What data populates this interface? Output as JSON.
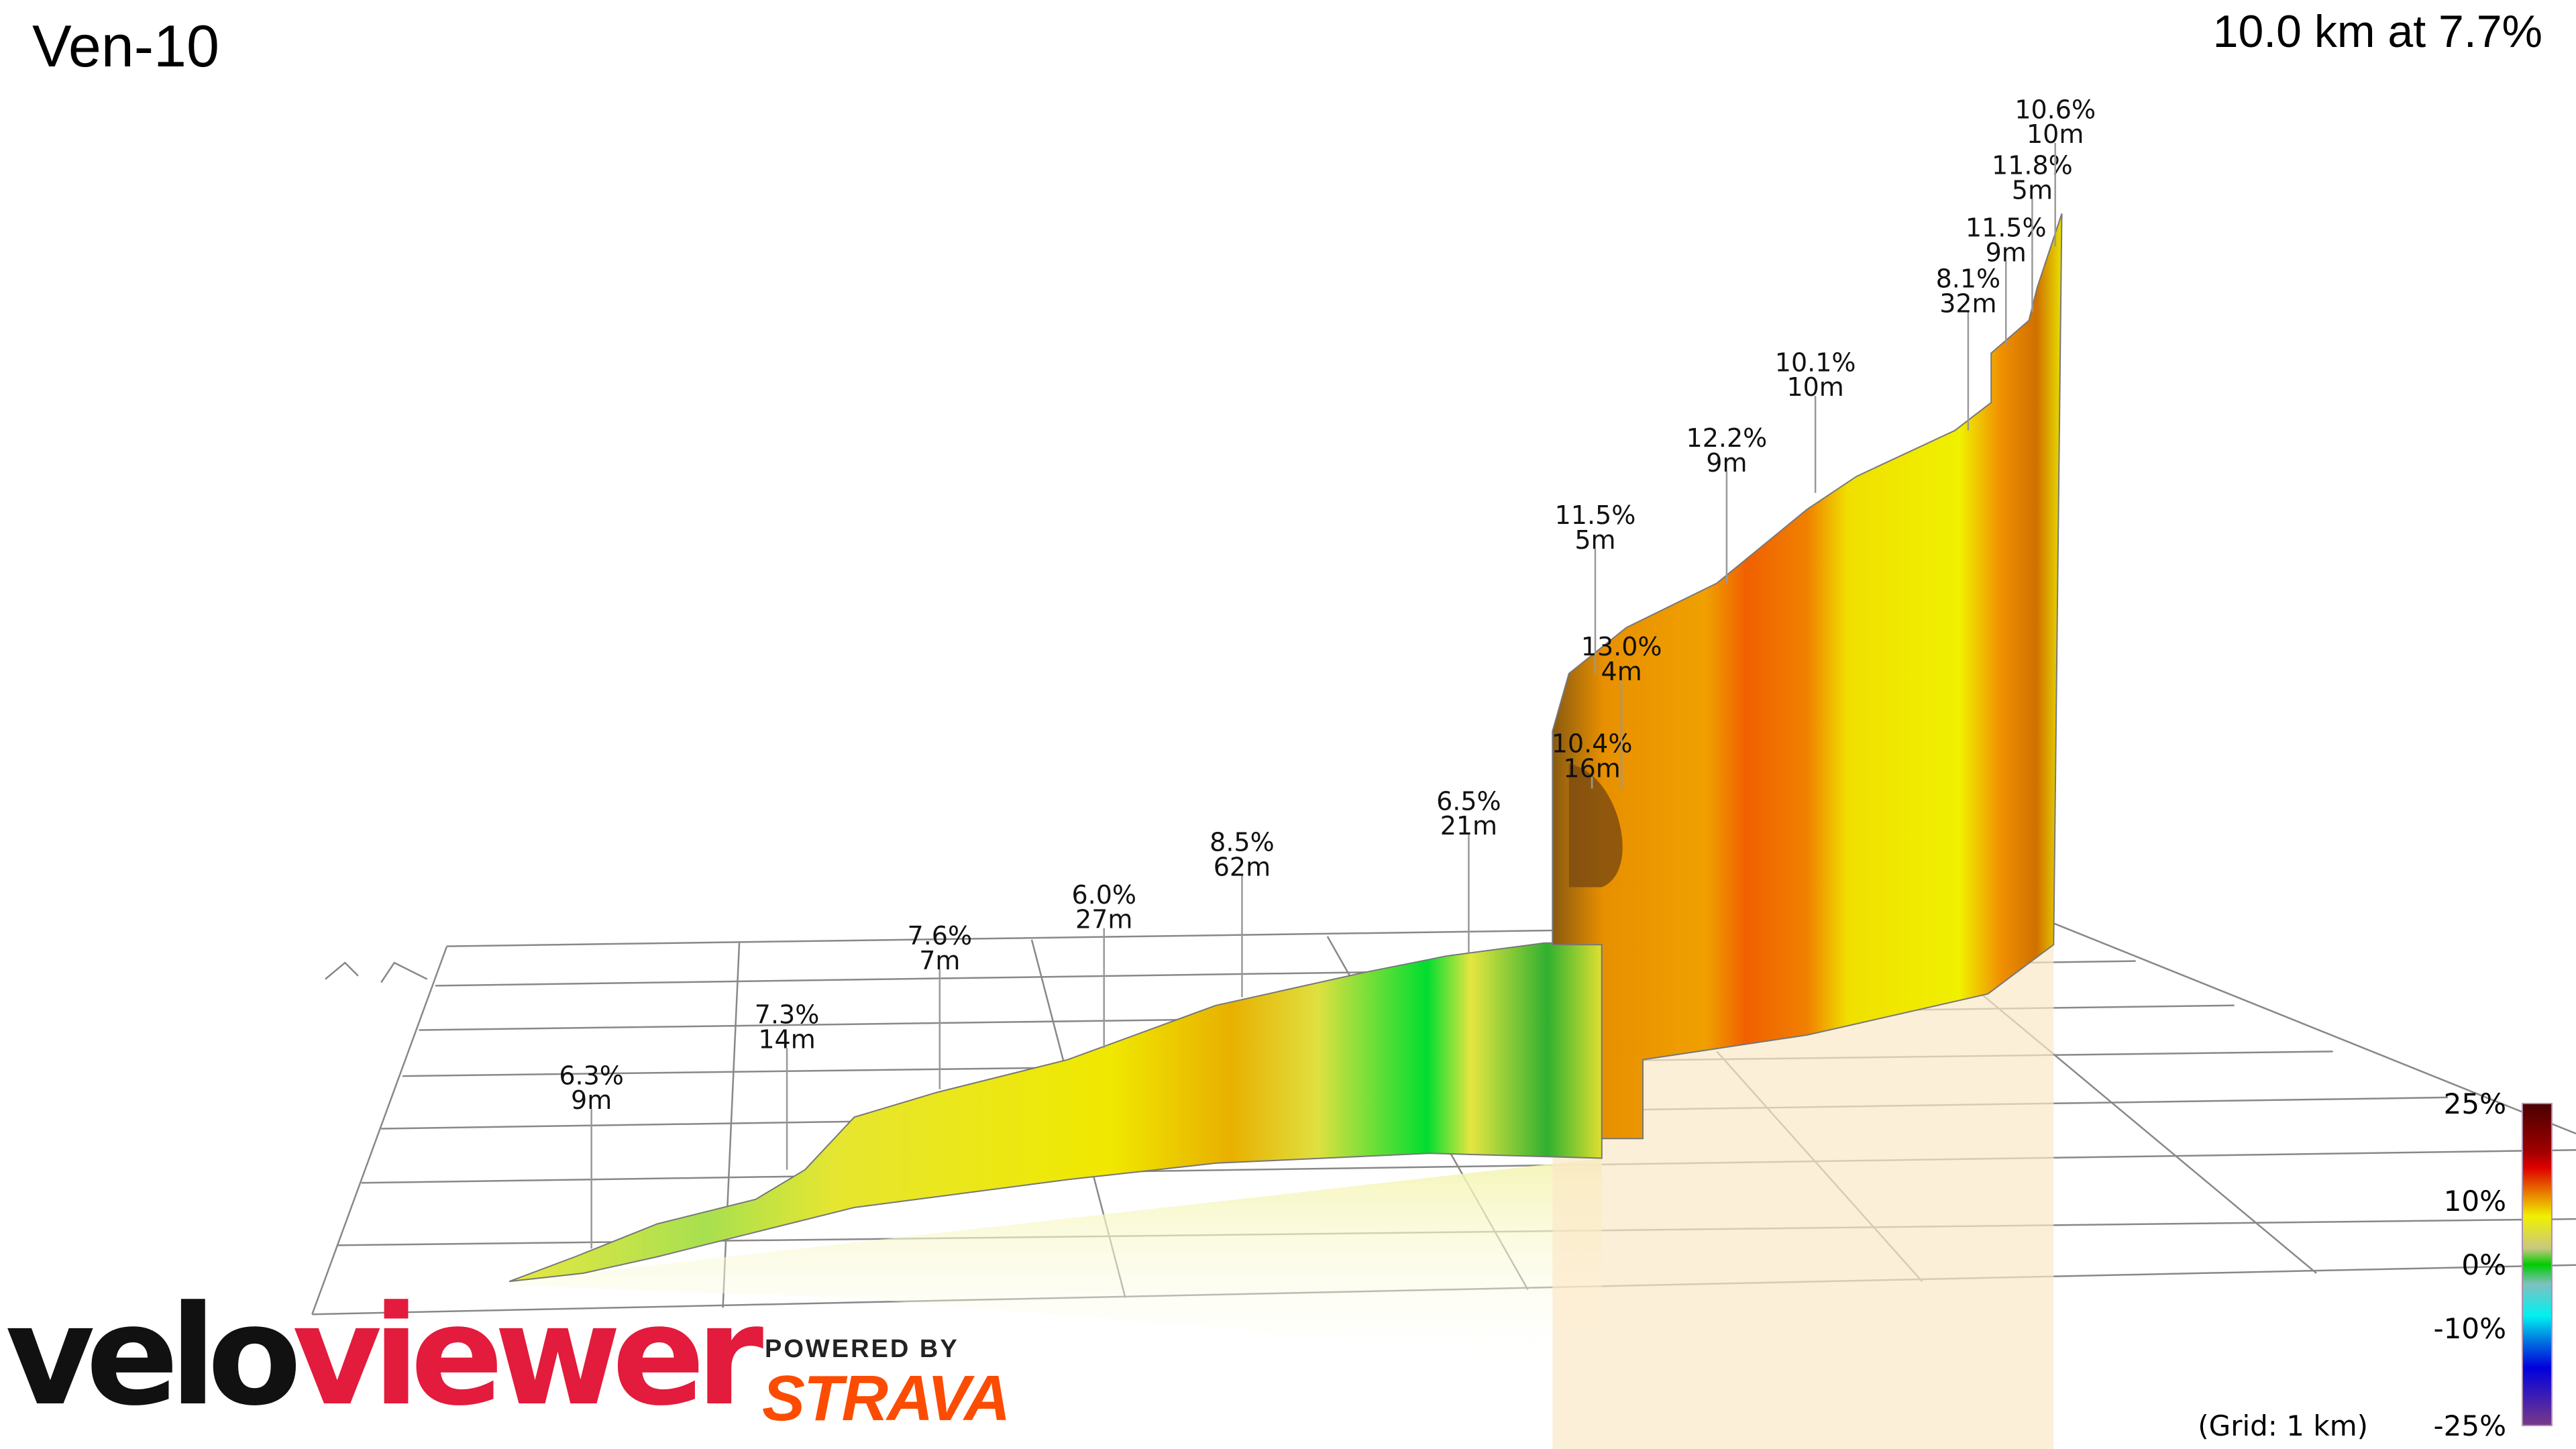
{
  "header": {
    "title": "Ven-10",
    "summary": "10.0 km at 7.7%"
  },
  "chart_data": {
    "type": "area",
    "title": "Ven-10",
    "subtitle": "10.0 km at 7.7%",
    "segments": [
      {
        "grade": "6.3%",
        "length": "9m"
      },
      {
        "grade": "7.3%",
        "length": "14m"
      },
      {
        "grade": "7.6%",
        "length": "7m"
      },
      {
        "grade": "6.0%",
        "length": "27m"
      },
      {
        "grade": "8.5%",
        "length": "62m"
      },
      {
        "grade": "6.5%",
        "length": "21m"
      },
      {
        "grade": "10.4%",
        "length": "16m"
      },
      {
        "grade": "13.0%",
        "length": "4m"
      },
      {
        "grade": "11.5%",
        "length": "5m"
      },
      {
        "grade": "12.2%",
        "length": "9m"
      },
      {
        "grade": "10.1%",
        "length": "10m"
      },
      {
        "grade": "8.1%",
        "length": "32m"
      },
      {
        "grade": "11.5%",
        "length": "9m"
      },
      {
        "grade": "11.8%",
        "length": "5m"
      },
      {
        "grade": "10.6%",
        "length": "10m"
      }
    ],
    "colorscale": {
      "ticks": [
        "25%",
        "10%",
        "0%",
        "-10%",
        "-25%"
      ],
      "grid_note": "(Grid: 1 km)",
      "colors": [
        "#4a0000",
        "#a00000",
        "#e00000",
        "#e88000",
        "#f0f000",
        "#c8c880",
        "#00cc00",
        "#80c0c0",
        "#00f0f0",
        "#0070e0",
        "#0000dd",
        "#7a3a8a"
      ]
    },
    "grid": true
  },
  "branding": {
    "logo_a": "velo",
    "logo_b": "viewer",
    "powered_by": "POWERED BY",
    "strava": "STRAVA",
    "strava_color": "#fc4c02",
    "logo_color": "#e31b3c"
  }
}
